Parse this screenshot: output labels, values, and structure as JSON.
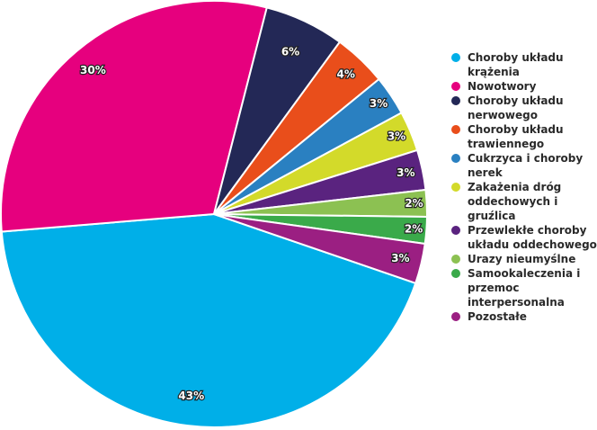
{
  "chart_data": {
    "type": "pie",
    "title": "",
    "legend_position": "right",
    "slices": [
      {
        "label": "Choroby układu krążenia",
        "value": 43,
        "display": "43%",
        "color": "#00afe8"
      },
      {
        "label": "Nowotwory",
        "value": 30,
        "display": "30%",
        "color": "#e6007e"
      },
      {
        "label": "Choroby układu nerwowego",
        "value": 6,
        "display": "6%",
        "color": "#232856"
      },
      {
        "label": "Choroby układu trawiennego",
        "value": 4,
        "display": "4%",
        "color": "#e94e1b"
      },
      {
        "label": "Cukrzyca i choroby nerek",
        "value": 3,
        "display": "3%",
        "color": "#2a80c1"
      },
      {
        "label": "Zakażenia dróg oddechowych i gruźlica",
        "value": 3,
        "display": "3%",
        "color": "#d3da2a"
      },
      {
        "label": "Przewlekłe choroby układu oddechowego",
        "value": 3,
        "display": "3%",
        "color": "#5a237f"
      },
      {
        "label": "Urazy nieumyślne",
        "value": 2,
        "display": "2%",
        "color": "#8cc152"
      },
      {
        "label": "Samookaleczenia i przemoc interpersonalna",
        "value": 2,
        "display": "2%",
        "color": "#3aaa4a"
      },
      {
        "label": "Pozostałe",
        "value": 3,
        "display": "3%",
        "color": "#9b1f82"
      }
    ]
  }
}
